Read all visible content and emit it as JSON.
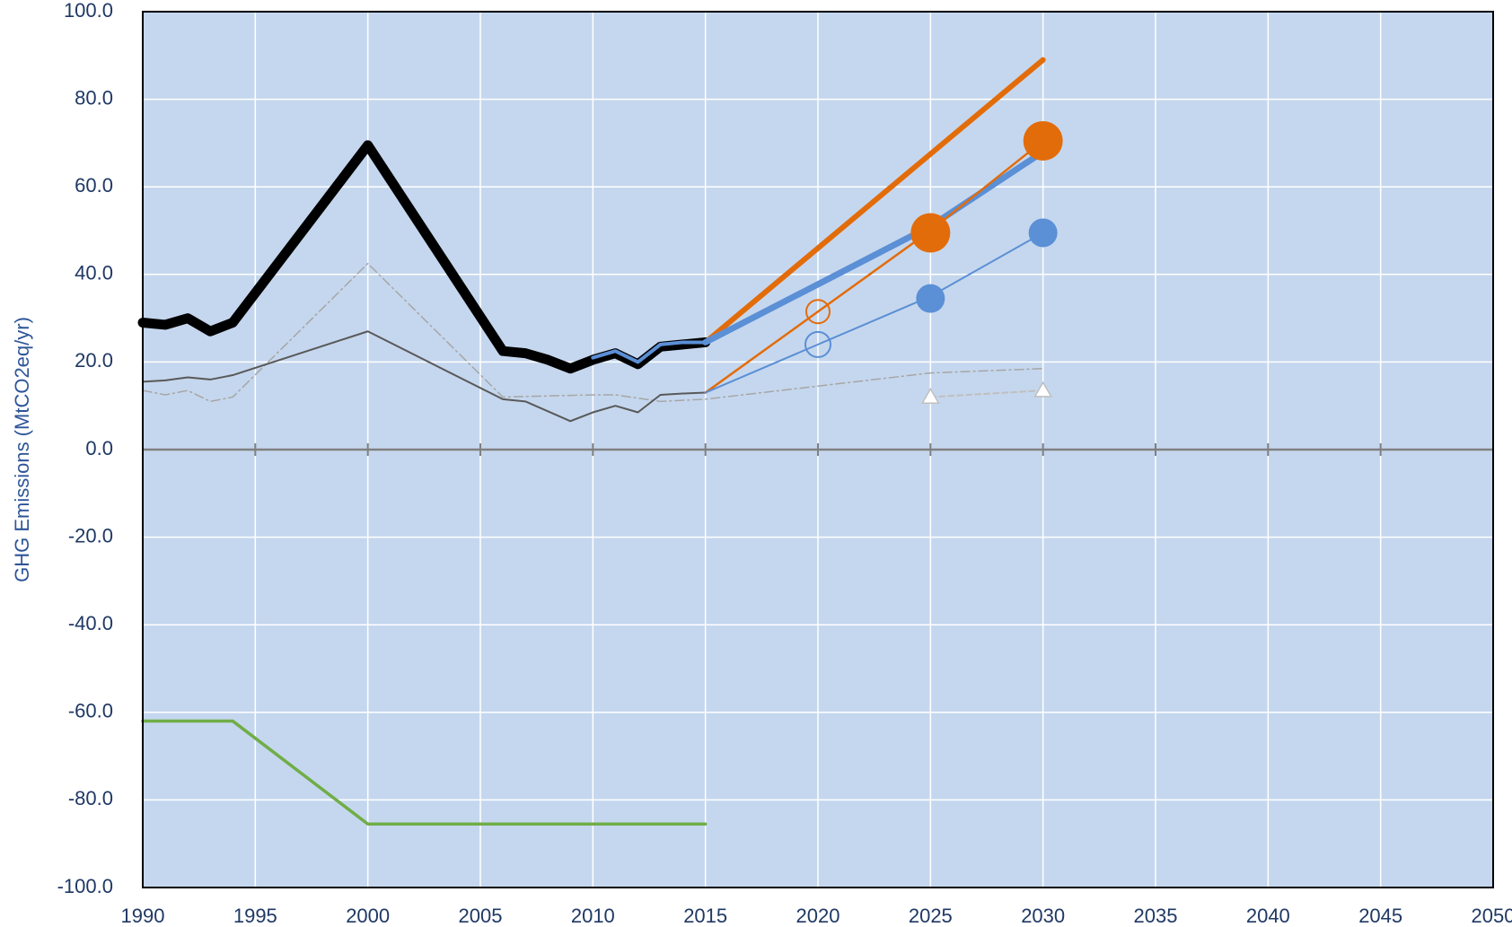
{
  "chart_data": {
    "type": "line",
    "y_label": "GHG Emissions (MtCO2eq/yr)",
    "xlim": [
      1990,
      2050
    ],
    "xticks": [
      1990,
      1995,
      2000,
      2005,
      2010,
      2015,
      2020,
      2025,
      2030,
      2035,
      2040,
      2045,
      2050
    ],
    "ylim": [
      -100,
      100
    ],
    "yticks": [
      {
        "value": -100,
        "label": "-100.0"
      },
      {
        "value": -80,
        "label": "-80.0"
      },
      {
        "value": -60,
        "label": "-60.0"
      },
      {
        "value": -40,
        "label": "-40.0"
      },
      {
        "value": -20,
        "label": "-20.0"
      },
      {
        "value": 0,
        "label": "0.0"
      },
      {
        "value": 20,
        "label": "20.0"
      },
      {
        "value": 40,
        "label": "40.0"
      },
      {
        "value": 60,
        "label": "60.0"
      },
      {
        "value": 80,
        "label": "80.0"
      },
      {
        "value": 100,
        "label": "100.0"
      }
    ],
    "grid": true,
    "series": [
      {
        "color": "#a6a6a6",
        "line_width": 1.5,
        "dash": "dashdot",
        "x": [
          1990,
          1991,
          1992,
          1993,
          1994,
          2000,
          2006,
          2010,
          2011,
          2013,
          2015,
          2020,
          2025,
          2030
        ],
        "values": [
          13.5,
          12.5,
          13.5,
          11,
          12,
          42.5,
          12,
          12.5,
          12.5,
          11,
          11.5,
          14.5,
          17.5,
          18.5
        ]
      },
      {
        "color": "#595959",
        "line_width": 2,
        "x": [
          1990,
          1991,
          1992,
          1993,
          1994,
          2000,
          2006,
          2007,
          2009,
          2010,
          2011,
          2012,
          2013,
          2014,
          2015
        ],
        "values": [
          15.5,
          15.8,
          16.5,
          16,
          17,
          27,
          11.5,
          11,
          6.5,
          8.5,
          10,
          8.5,
          12.5,
          12.8,
          13
        ]
      },
      {
        "color": "#000000",
        "line_width": 11,
        "x": [
          1990,
          1991,
          1992,
          1993,
          1994,
          2000,
          2006,
          2007,
          2008,
          2009,
          2010,
          2011,
          2012,
          2013,
          2014,
          2015
        ],
        "values": [
          29,
          28.5,
          30,
          27,
          29,
          69.5,
          22.5,
          22,
          20.5,
          18.5,
          20.5,
          22,
          19.5,
          23.5,
          24,
          24.5
        ]
      },
      {
        "color": "#5b8fd6",
        "line_width": 4,
        "x": [
          2010,
          2011,
          2012,
          2013,
          2014,
          2015
        ],
        "values": [
          21,
          22.5,
          20,
          24,
          24.5,
          24.5
        ]
      },
      {
        "color": "#70ad47",
        "line_width": 3.5,
        "x": [
          1990,
          1994,
          2000,
          2015
        ],
        "values": [
          -62,
          -62,
          -85.5,
          -85.5
        ]
      },
      {
        "color": "#e36c0a",
        "line_width": 6,
        "x": [
          2015,
          2030
        ],
        "values": [
          24.5,
          89
        ]
      },
      {
        "color": "#5b8fd6",
        "line_width": 7,
        "x": [
          2015,
          2025,
          2030
        ],
        "values": [
          24.5,
          51,
          68
        ]
      },
      {
        "color": "#e36c0a",
        "line_width": 2.5,
        "x": [
          2015,
          2020,
          2025,
          2030
        ],
        "values": [
          13,
          31.5,
          50,
          70.5
        ]
      },
      {
        "color": "#5b8fd6",
        "line_width": 2,
        "x": [
          2015,
          2020,
          2025,
          2030
        ],
        "values": [
          13,
          24,
          35,
          49.5
        ]
      },
      {
        "color": "#e36c0a",
        "line_width": 0,
        "marker": "circle-open",
        "marker_size": 13,
        "x": [
          2020
        ],
        "values": [
          31.5
        ]
      },
      {
        "color": "#e36c0a",
        "line_width": 0,
        "marker": "circle",
        "marker_size": 22,
        "x": [
          2025,
          2030
        ],
        "values": [
          49.5,
          70.5
        ]
      },
      {
        "color": "#5b8fd6",
        "line_width": 0,
        "marker": "circle-open",
        "marker_size": 14,
        "x": [
          2020
        ],
        "values": [
          24
        ]
      },
      {
        "color": "#5b8fd6",
        "line_width": 0,
        "marker": "circle",
        "marker_size": 16,
        "x": [
          2025,
          2030
        ],
        "values": [
          34.5,
          49.5
        ]
      },
      {
        "color": "#bfbfbf",
        "line_width": 2,
        "dash": "dash",
        "marker": "triangle-open",
        "marker_size": 9,
        "x": [
          2025,
          2030
        ],
        "values": [
          12,
          13.5
        ]
      }
    ]
  }
}
